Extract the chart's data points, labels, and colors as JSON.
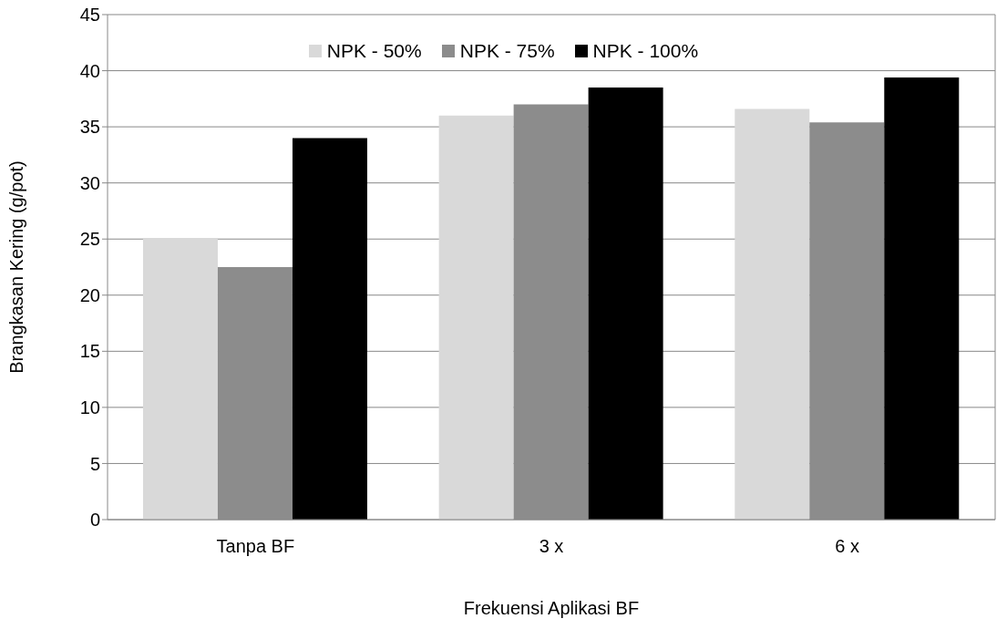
{
  "chart_data": {
    "type": "bar",
    "xlabel": "Frekuensi Aplikasi BF",
    "ylabel": "Brangkasan Kering (g/pot)",
    "categories": [
      "Tanpa BF",
      "3 x",
      "6 x"
    ],
    "series": [
      {
        "name": "NPK - 50%",
        "color": "#d9d9d9",
        "values": [
          25.1,
          36.0,
          36.6
        ]
      },
      {
        "name": "NPK - 75%",
        "color": "#8c8c8c",
        "values": [
          22.5,
          37.0,
          35.4
        ]
      },
      {
        "name": "NPK - 100%",
        "color": "#000000",
        "values": [
          34.0,
          38.5,
          39.4
        ]
      }
    ],
    "ylim": [
      0,
      45
    ],
    "yticks": [
      0,
      5,
      10,
      15,
      20,
      25,
      30,
      35,
      40,
      45
    ],
    "grid": "y",
    "legend": "top"
  }
}
